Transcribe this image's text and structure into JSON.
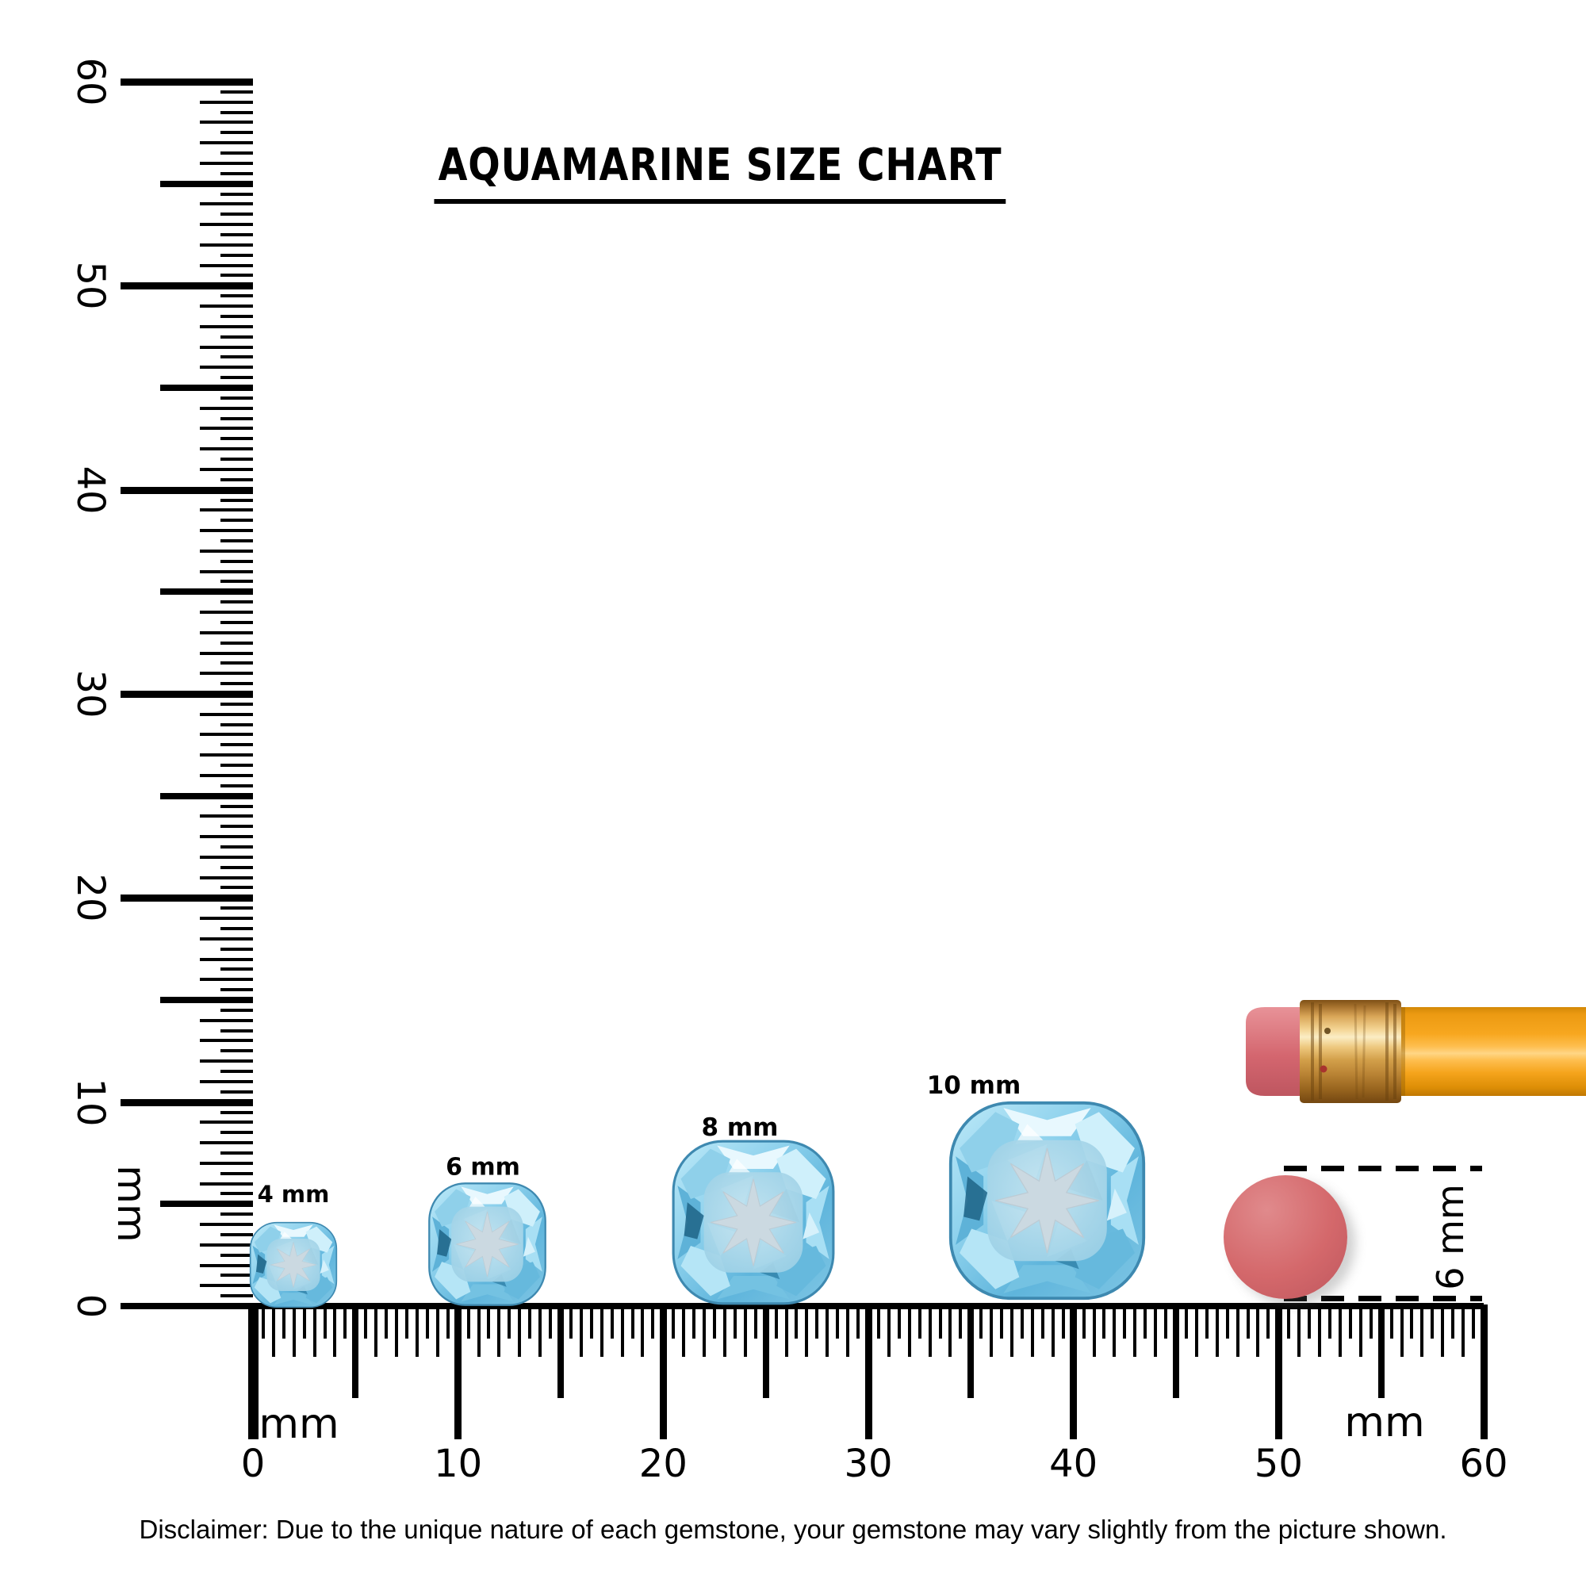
{
  "title": {
    "text": "AQUAMARINE SIZE CHART"
  },
  "rulers": {
    "unit": "mm",
    "vertical": {
      "min": 0,
      "max": 60,
      "major_step": 10,
      "number_labels": [
        "0",
        "10",
        "20",
        "30",
        "40",
        "50",
        "60"
      ],
      "unit_label": "mm"
    },
    "horizontal": {
      "min": 0,
      "max": 60,
      "major_step": 10,
      "number_labels": [
        "0",
        "10",
        "20",
        "30",
        "40",
        "50",
        "60"
      ],
      "unit_labels": [
        "mm",
        "mm"
      ]
    }
  },
  "gems": [
    {
      "label": "4 mm",
      "size_mm": 4
    },
    {
      "label": "6 mm",
      "size_mm": 6
    },
    {
      "label": "8 mm",
      "size_mm": 8
    },
    {
      "label": "10 mm",
      "size_mm": 10
    }
  ],
  "eraser_comparison": {
    "measure_label": "6 mm"
  },
  "disclaimer": "Disclaimer: Due to the unique nature of each gemstone, your gemstone may vary slightly from the picture shown.",
  "colors": {
    "ink": "#000000",
    "gem_light": "#BDE9F8",
    "gem_mid": "#7FC9E8",
    "gem_dark": "#2E7FA6",
    "gem_star": "#CBD9E1",
    "eraser_pink": "#D4686B",
    "pencil_eraser_pink": "#D4666F",
    "ferrule_gold": "#E8BC6E",
    "pencil_orange": "#F7A71F"
  }
}
